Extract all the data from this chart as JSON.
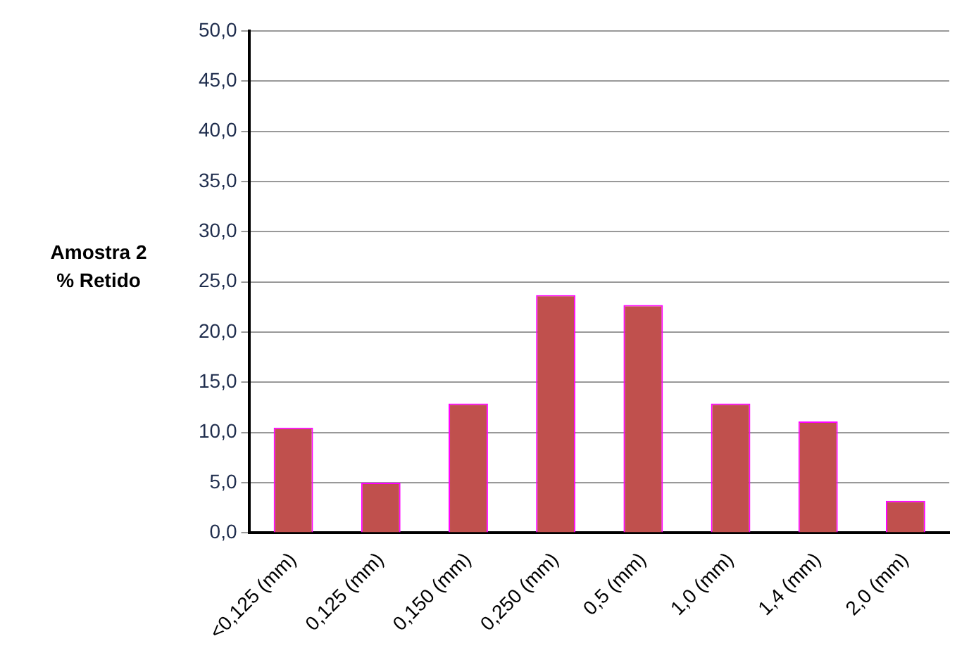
{
  "chart_data": {
    "type": "bar",
    "ylabel": "Amostra 2\n% Retido",
    "categories": [
      "<0,125 (mm)",
      "0,125 (mm)",
      "0,150 (mm)",
      "0,250 (mm)",
      "0,5 (mm)",
      "1,0 (mm)",
      "1,4 (mm)",
      "2,0 (mm)"
    ],
    "values": [
      10.5,
      5.0,
      12.9,
      23.7,
      22.7,
      12.9,
      11.1,
      3.2
    ],
    "color": "#c0504d",
    "ylim": [
      0,
      50
    ],
    "yticks": [
      {
        "value": 0,
        "label": "0,0"
      },
      {
        "value": 5,
        "label": "5,0"
      },
      {
        "value": 10,
        "label": "10,0"
      },
      {
        "value": 15,
        "label": "15,0"
      },
      {
        "value": 20,
        "label": "20,0"
      },
      {
        "value": 25,
        "label": "25,0"
      },
      {
        "value": 30,
        "label": "30,0"
      },
      {
        "value": 35,
        "label": "35,0"
      },
      {
        "value": 40,
        "label": "40,0"
      },
      {
        "value": 45,
        "label": "45,0"
      },
      {
        "value": 50,
        "label": "50,0"
      }
    ],
    "grid": "y",
    "legend": false
  }
}
